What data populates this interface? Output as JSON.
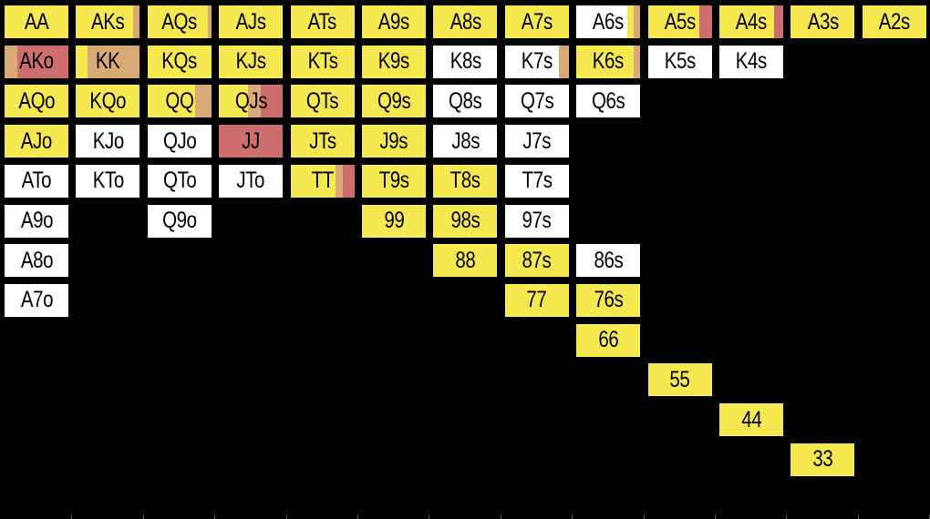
{
  "colors": {
    "background": "#000000",
    "fold": "#ffffff",
    "call": "#f6e94f",
    "raise_small": "#d9aa76",
    "raise_big": "#cf6e6e"
  },
  "rows": [
    [
      {
        "label": "AA",
        "mix": {
          "call": 1.0
        }
      },
      {
        "label": "AKs",
        "mix": {
          "call": 0.9,
          "raise_small": 0.1
        }
      },
      {
        "label": "AQs",
        "mix": {
          "call": 0.95,
          "raise_small": 0.05
        }
      },
      {
        "label": "AJs",
        "mix": {
          "call": 1.0
        }
      },
      {
        "label": "ATs",
        "mix": {
          "call": 1.0
        }
      },
      {
        "label": "A9s",
        "mix": {
          "call": 1.0
        }
      },
      {
        "label": "A8s",
        "mix": {
          "call": 1.0
        }
      },
      {
        "label": "A7s",
        "mix": {
          "call": 1.0
        }
      },
      {
        "label": "A6s",
        "mix": {
          "fold": 0.8,
          "call": 0.1,
          "raise_small": 0.1
        }
      },
      {
        "label": "A5s",
        "mix": {
          "call": 0.8,
          "raise_big": 0.2
        }
      },
      {
        "label": "A4s",
        "mix": {
          "call": 0.85,
          "raise_big": 0.15
        }
      },
      {
        "label": "A3s",
        "mix": {
          "call": 1.0
        }
      },
      {
        "label": "A2s",
        "mix": {
          "call": 1.0
        }
      }
    ],
    [
      {
        "label": "AKo",
        "mix": {
          "raise_big": 0.8,
          "raise_small": 0.2
        }
      },
      {
        "label": "KK",
        "mix": {
          "call": 0.18,
          "raise_small": 0.82
        }
      },
      {
        "label": "KQs",
        "mix": {
          "call": 1.0
        }
      },
      {
        "label": "KJs",
        "mix": {
          "call": 1.0
        }
      },
      {
        "label": "KTs",
        "mix": {
          "call": 1.0
        }
      },
      {
        "label": "K9s",
        "mix": {
          "call": 1.0
        }
      },
      {
        "label": "K8s",
        "mix": {
          "fold": 1.0
        }
      },
      {
        "label": "K7s",
        "mix": {
          "fold": 0.85,
          "raise_small": 0.15
        }
      },
      {
        "label": "K6s",
        "mix": {
          "call": 0.9,
          "raise_small": 0.1
        }
      },
      {
        "label": "K5s",
        "mix": {
          "fold": 1.0
        }
      },
      {
        "label": "K4s",
        "mix": {
          "fold": 1.0
        }
      },
      null,
      null
    ],
    [
      {
        "label": "AQo",
        "mix": {
          "call": 1.0
        }
      },
      {
        "label": "KQo",
        "mix": {
          "call": 1.0
        }
      },
      {
        "label": "QQ",
        "mix": {
          "call": 0.75,
          "raise_small": 0.25
        }
      },
      {
        "label": "QJs",
        "mix": {
          "call": 0.45,
          "raise_small": 0.2,
          "raise_big": 0.35
        }
      },
      {
        "label": "QTs",
        "mix": {
          "call": 1.0
        }
      },
      {
        "label": "Q9s",
        "mix": {
          "call": 1.0
        }
      },
      {
        "label": "Q8s",
        "mix": {
          "fold": 1.0
        }
      },
      {
        "label": "Q7s",
        "mix": {
          "fold": 1.0
        }
      },
      {
        "label": "Q6s",
        "mix": {
          "fold": 1.0
        }
      },
      null,
      null,
      null,
      null
    ],
    [
      {
        "label": "AJo",
        "mix": {
          "call": 1.0
        }
      },
      {
        "label": "KJo",
        "mix": {
          "fold": 1.0
        }
      },
      {
        "label": "QJo",
        "mix": {
          "fold": 1.0
        }
      },
      {
        "label": "JJ",
        "mix": {
          "raise_big": 1.0
        }
      },
      {
        "label": "JTs",
        "mix": {
          "call": 1.0
        }
      },
      {
        "label": "J9s",
        "mix": {
          "call": 1.0
        }
      },
      {
        "label": "J8s",
        "mix": {
          "fold": 1.0
        }
      },
      {
        "label": "J7s",
        "mix": {
          "fold": 1.0
        }
      },
      null,
      null,
      null,
      null,
      null
    ],
    [
      {
        "label": "ATo",
        "mix": {
          "fold": 1.0
        }
      },
      {
        "label": "KTo",
        "mix": {
          "fold": 1.0
        }
      },
      {
        "label": "QTo",
        "mix": {
          "fold": 1.0
        }
      },
      {
        "label": "JTo",
        "mix": {
          "fold": 1.0
        }
      },
      {
        "label": "TT",
        "mix": {
          "call": 0.7,
          "raise_big": 0.18,
          "raise_small": 0.12
        }
      },
      {
        "label": "T9s",
        "mix": {
          "call": 1.0
        }
      },
      {
        "label": "T8s",
        "mix": {
          "call": 1.0
        }
      },
      {
        "label": "T7s",
        "mix": {
          "fold": 1.0
        }
      },
      null,
      null,
      null,
      null,
      null
    ],
    [
      {
        "label": "A9o",
        "mix": {
          "fold": 1.0
        }
      },
      null,
      {
        "label": "Q9o",
        "mix": {
          "fold": 1.0
        }
      },
      null,
      null,
      {
        "label": "99",
        "mix": {
          "call": 1.0
        }
      },
      {
        "label": "98s",
        "mix": {
          "call": 1.0
        }
      },
      {
        "label": "97s",
        "mix": {
          "fold": 1.0
        }
      },
      null,
      null,
      null,
      null,
      null
    ],
    [
      {
        "label": "A8o",
        "mix": {
          "fold": 1.0
        }
      },
      null,
      null,
      null,
      null,
      null,
      {
        "label": "88",
        "mix": {
          "call": 1.0
        }
      },
      {
        "label": "87s",
        "mix": {
          "call": 1.0
        }
      },
      {
        "label": "86s",
        "mix": {
          "fold": 1.0
        }
      },
      null,
      null,
      null,
      null
    ],
    [
      {
        "label": "A7o",
        "mix": {
          "fold": 1.0
        }
      },
      null,
      null,
      null,
      null,
      null,
      null,
      {
        "label": "77",
        "mix": {
          "call": 1.0
        }
      },
      {
        "label": "76s",
        "mix": {
          "call": 1.0
        }
      },
      null,
      null,
      null,
      null
    ],
    [
      null,
      null,
      null,
      null,
      null,
      null,
      null,
      null,
      {
        "label": "66",
        "mix": {
          "call": 1.0
        }
      },
      null,
      null,
      null,
      null
    ],
    [
      null,
      null,
      null,
      null,
      null,
      null,
      null,
      null,
      null,
      {
        "label": "55",
        "mix": {
          "call": 1.0
        }
      },
      null,
      null,
      null
    ],
    [
      null,
      null,
      null,
      null,
      null,
      null,
      null,
      null,
      null,
      null,
      {
        "label": "44",
        "mix": {
          "call": 1.0
        }
      },
      null,
      null
    ],
    [
      null,
      null,
      null,
      null,
      null,
      null,
      null,
      null,
      null,
      null,
      null,
      {
        "label": "33",
        "mix": {
          "call": 1.0
        }
      },
      null
    ],
    [
      null,
      null,
      null,
      null,
      null,
      null,
      null,
      null,
      null,
      null,
      null,
      null,
      null
    ]
  ]
}
